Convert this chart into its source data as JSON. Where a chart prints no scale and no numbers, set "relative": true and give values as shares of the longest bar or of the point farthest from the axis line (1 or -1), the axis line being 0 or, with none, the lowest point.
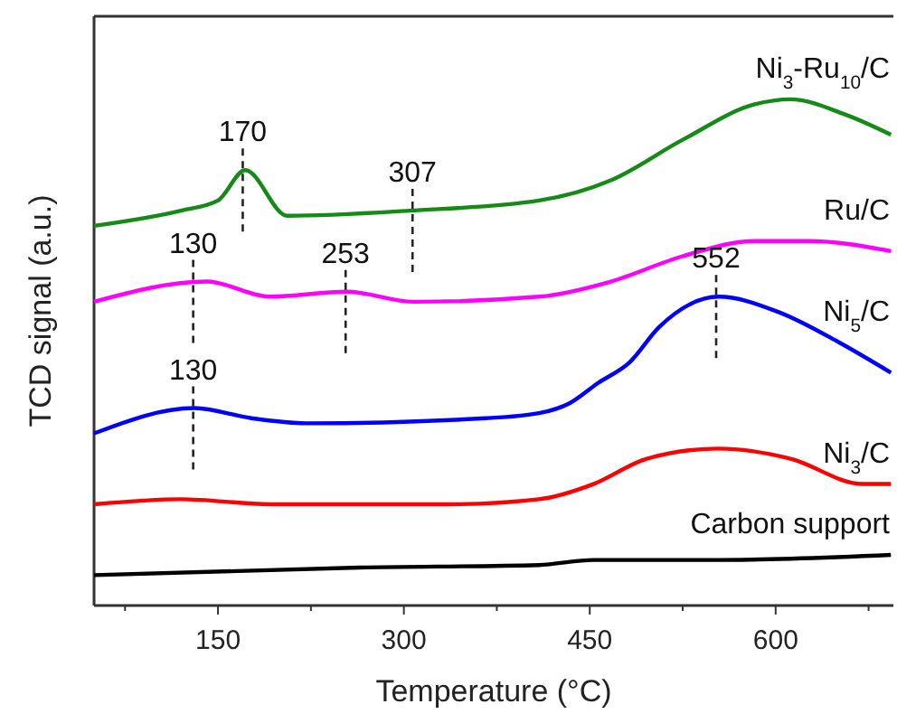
{
  "chart_data": {
    "type": "line",
    "xlabel": "Temperature (°C)",
    "ylabel": "TCD signal (a.u.)",
    "relative": true,
    "tick_labels": "x",
    "grid": false,
    "xlim": [
      50,
      695
    ],
    "xticks": [
      {
        "value": 75,
        "label": null
      },
      150,
      {
        "value": 225,
        "label": null
      },
      300,
      {
        "value": 375,
        "label": null
      },
      450,
      {
        "value": 525,
        "label": null
      },
      600,
      {
        "value": 675,
        "label": null
      }
    ],
    "series": [
      {
        "name": "Ni$_{3}$-Ru$_{10}$/C",
        "color": "#168a16",
        "x": [
          50,
          120,
          150,
          172,
          206,
          304,
          409,
          467,
          525,
          583,
          612,
          656,
          693
        ],
        "values": [
          0.75,
          0.78,
          0.8,
          0.86,
          0.77,
          0.78,
          0.8,
          0.84,
          0.92,
          0.99,
          1.0,
          0.97,
          0.93
        ]
      },
      {
        "name": "Ru/C",
        "color": "#ff00ff",
        "x": [
          50,
          141,
          192,
          254,
          308,
          409,
          467,
          525,
          583,
          627,
          693
        ],
        "values": [
          0.6,
          0.64,
          0.61,
          0.62,
          0.6,
          0.61,
          0.64,
          0.69,
          0.72,
          0.72,
          0.7
        ]
      },
      {
        "name": "Ni$_{5}$/C",
        "color": "#0000ff",
        "x": [
          50,
          131,
          177,
          221,
          366,
          409,
          434,
          457,
          482,
          506,
          554,
          602,
          651,
          693
        ],
        "values": [
          0.34,
          0.39,
          0.37,
          0.36,
          0.37,
          0.38,
          0.4,
          0.44,
          0.48,
          0.55,
          0.61,
          0.58,
          0.52,
          0.46
        ]
      },
      {
        "name": "Ni$_{3}$/C",
        "color": "#ff0000",
        "x": [
          50,
          120,
          192,
          337,
          409,
          453,
          496,
          554,
          612,
          670,
          693
        ],
        "values": [
          0.2,
          0.21,
          0.2,
          0.2,
          0.21,
          0.24,
          0.29,
          0.31,
          0.29,
          0.24,
          0.24
        ]
      },
      {
        "name": "Carbon support",
        "color": "#000000",
        "x": [
          50,
          264,
          409,
          453,
          554,
          693
        ],
        "values": [
          0.06,
          0.075,
          0.08,
          0.09,
          0.09,
          0.1
        ]
      }
    ],
    "annotations": [
      {
        "text": "170",
        "x": 170,
        "y": 0.86
      },
      {
        "text": "307",
        "x": 307,
        "y": 0.78
      },
      {
        "text": "130",
        "x": 130,
        "y": 0.64
      },
      {
        "text": "253",
        "x": 253,
        "y": 0.62
      },
      {
        "text": "552",
        "x": 552,
        "y": 0.61
      },
      {
        "text": "130",
        "x": 130,
        "y": 0.39
      }
    ]
  }
}
